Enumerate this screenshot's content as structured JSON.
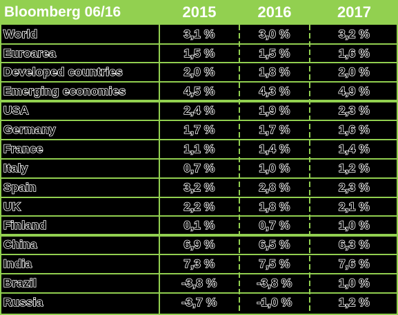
{
  "header": {
    "label": "Bloomberg 06/16",
    "years": [
      "2015",
      "2016",
      "2017"
    ]
  },
  "rows": [
    {
      "label": "World",
      "values": [
        "3,1 %",
        "3,0 %",
        "3,2 %"
      ]
    },
    {
      "label": "Euroarea",
      "values": [
        "1,5 %",
        "1,5 %",
        "1,6 %"
      ]
    },
    {
      "label": "Developed countries",
      "values": [
        "2,0 %",
        "1,8 %",
        "2,0 %"
      ]
    },
    {
      "label": "Emerging economies",
      "values": [
        "4,5 %",
        "4,3 %",
        "4,9 %"
      ]
    },
    {
      "label": "USA",
      "values": [
        "2,4 %",
        "1,9 %",
        "2,3 %"
      ]
    },
    {
      "label": "Germany",
      "values": [
        "1,7 %",
        "1,7 %",
        "1,6 %"
      ]
    },
    {
      "label": "France",
      "values": [
        "1,1 %",
        "1,4 %",
        "1,4 %"
      ]
    },
    {
      "label": "Italy",
      "values": [
        "0,7 %",
        "1,0 %",
        "1,2 %"
      ]
    },
    {
      "label": "Spain",
      "values": [
        "3,2 %",
        "2,8 %",
        "2,3 %"
      ]
    },
    {
      "label": "UK",
      "values": [
        "2,2 %",
        "1,8 %",
        "2,1 %"
      ]
    },
    {
      "label": "Finland",
      "values": [
        "0,1 %",
        "0,7 %",
        "1,0 %"
      ]
    },
    {
      "label": "China",
      "values": [
        "6,9 %",
        "6,5 %",
        "6,3 %"
      ]
    },
    {
      "label": "India",
      "values": [
        "7,3 %",
        "7,5 %",
        "7,6 %"
      ]
    },
    {
      "label": "Brazil",
      "values": [
        "-3,8 %",
        "-3,8 %",
        "1,0 %"
      ]
    },
    {
      "label": "Russia",
      "values": [
        "-3,7 %",
        "-1,0 %",
        "1,2 %"
      ]
    }
  ],
  "colors": {
    "accent": "#92d050",
    "background": "#000000",
    "text": "#ffffff"
  }
}
